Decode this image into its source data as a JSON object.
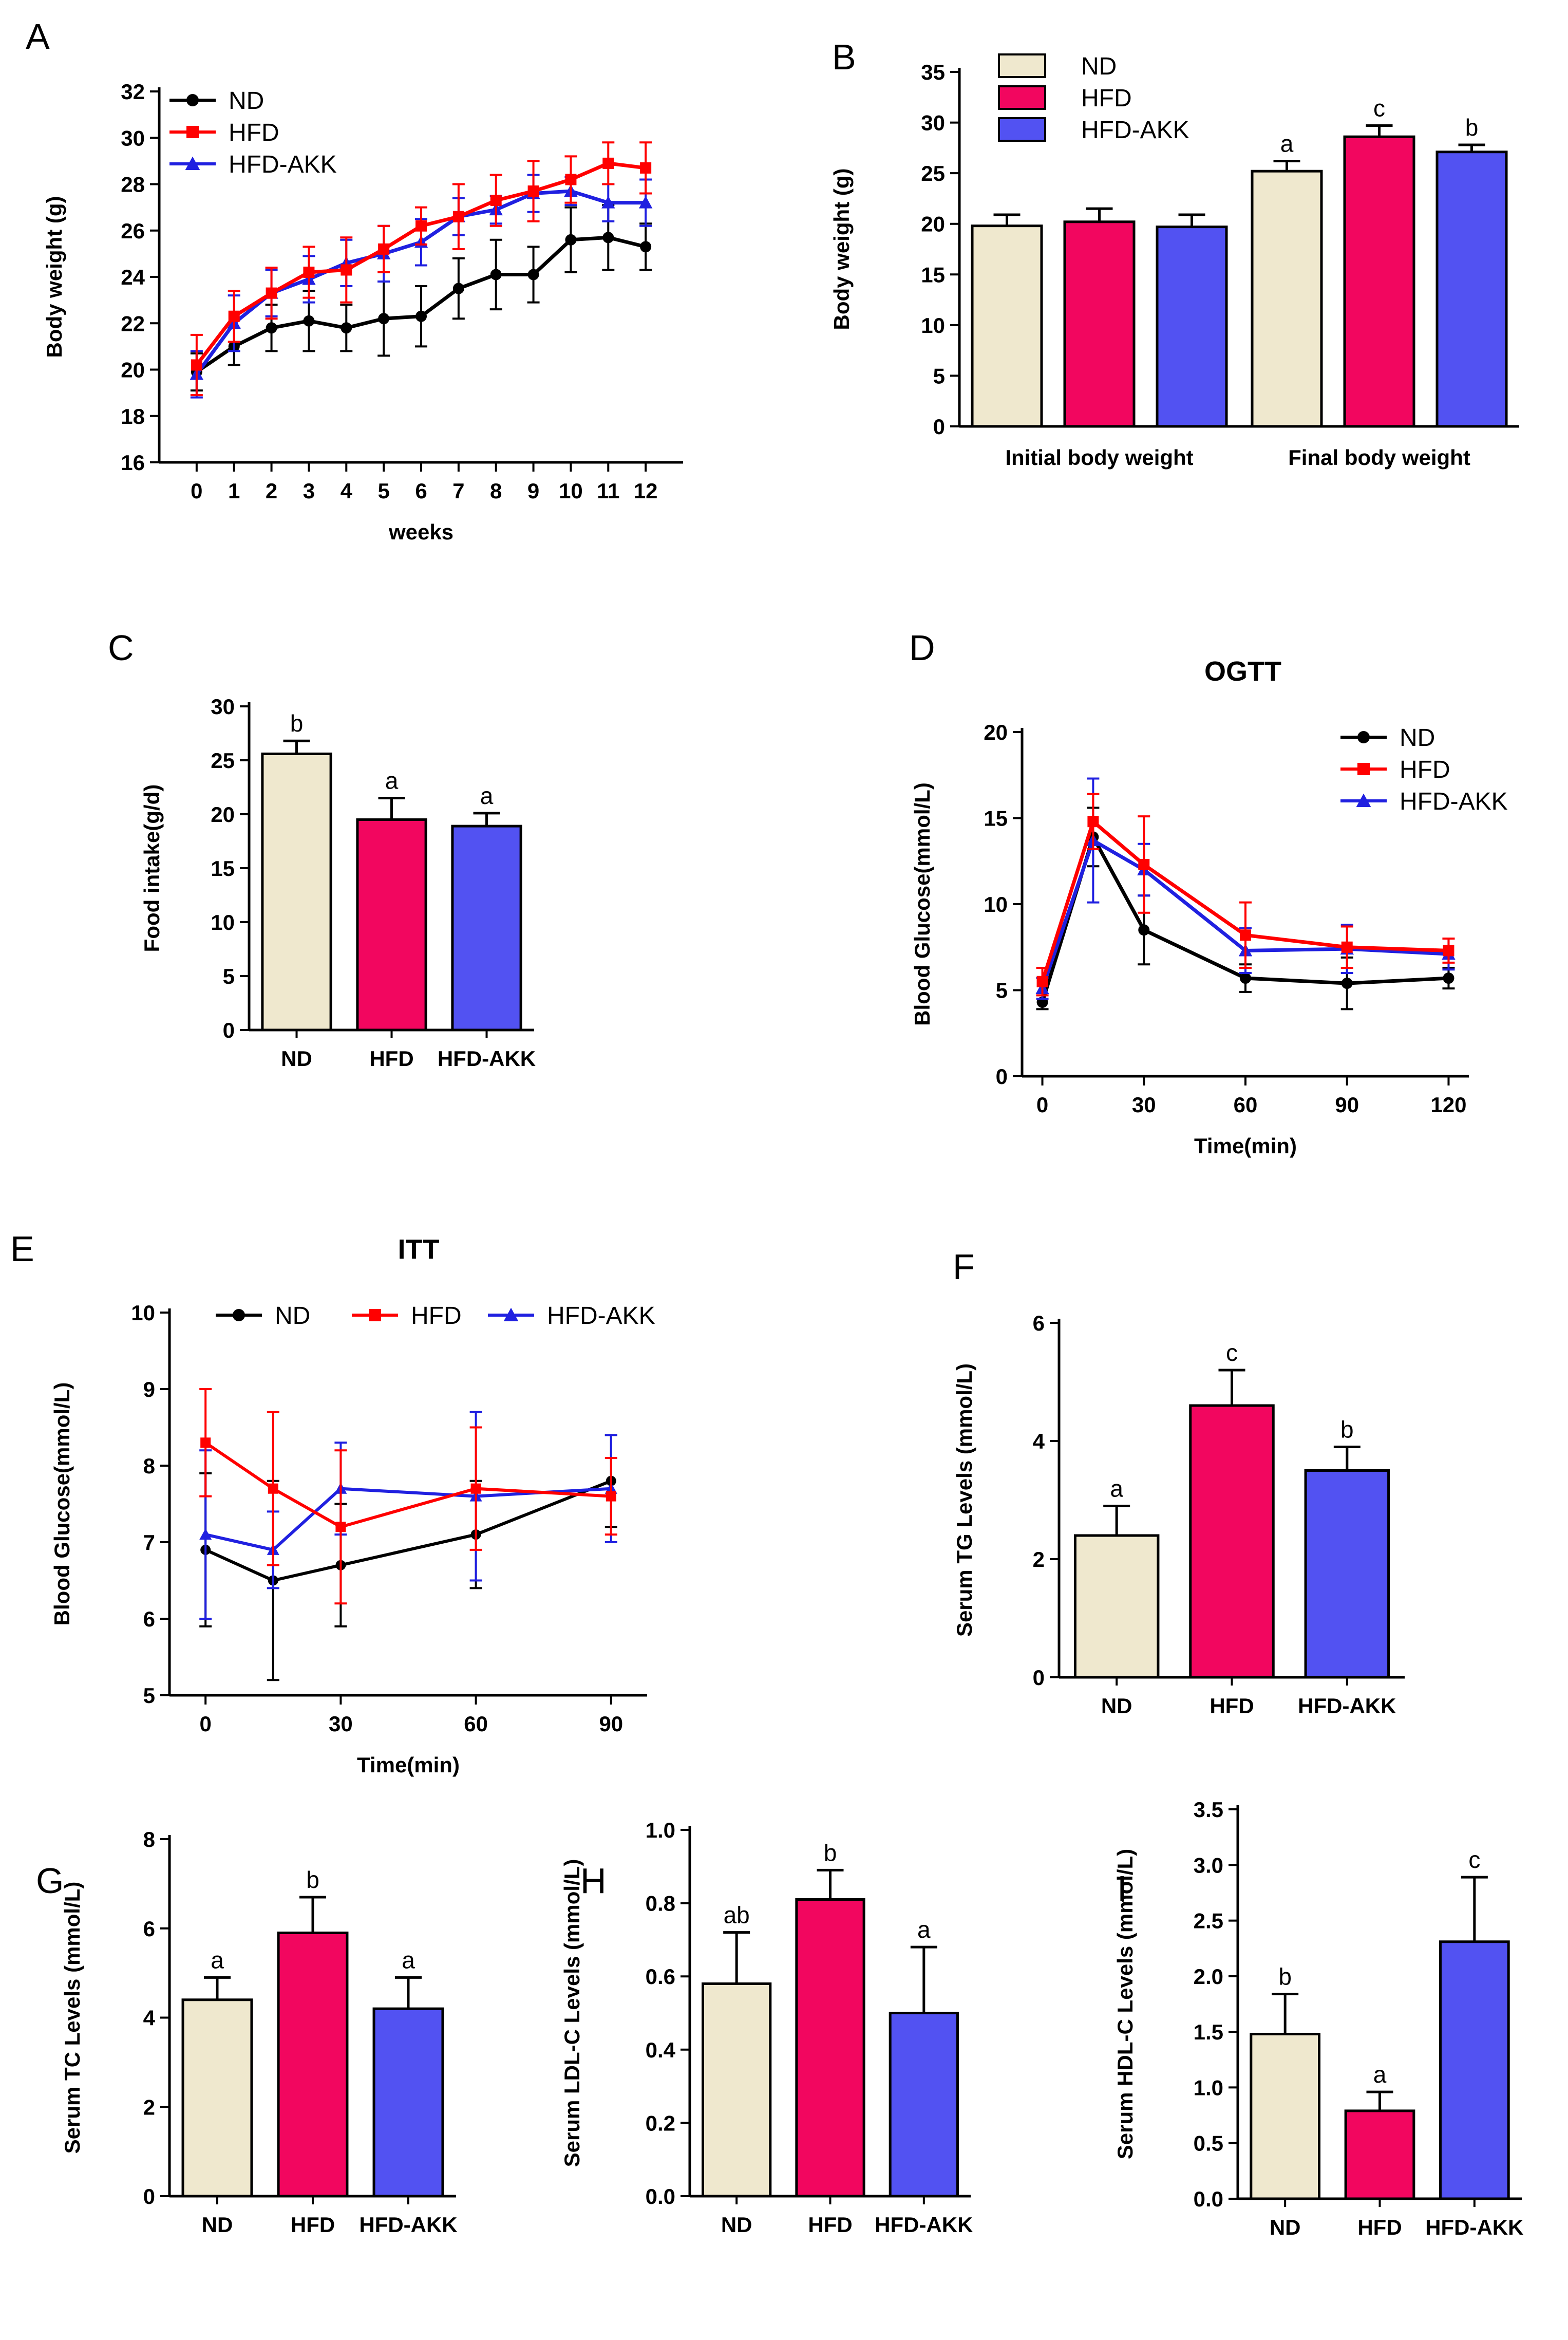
{
  "colors": {
    "ND": "#000000",
    "HFD": "#ff0000",
    "HFD-AKK": "#2020e0",
    "bar_ND": "#efe8ce",
    "bar_HFD": "#f2065f",
    "bar_HFD-AKK": "#5252f2"
  },
  "chart_data": [
    {
      "panel": "A",
      "type": "line",
      "title": "",
      "xlabel": "weeks",
      "ylabel": "Body weight (g)",
      "x": [
        0,
        1,
        2,
        3,
        4,
        5,
        6,
        7,
        8,
        9,
        10,
        11,
        12
      ],
      "xticks": [
        "0",
        "1",
        "2",
        "3",
        "4",
        "5",
        "6",
        "7",
        "8",
        "9",
        "10",
        "11",
        "12"
      ],
      "ylim": [
        16,
        32
      ],
      "yticks": [
        "16",
        "18",
        "20",
        "22",
        "24",
        "26",
        "28",
        "30",
        "32"
      ],
      "series": [
        {
          "name": "ND",
          "values": [
            19.9,
            21.0,
            21.8,
            22.1,
            21.8,
            22.2,
            22.3,
            23.5,
            24.1,
            24.1,
            25.6,
            25.7,
            25.3
          ],
          "errors": [
            0.8,
            0.8,
            1.0,
            1.3,
            1.0,
            1.6,
            1.3,
            1.3,
            1.5,
            1.2,
            1.4,
            1.4,
            1.0
          ]
        },
        {
          "name": "HFD",
          "values": [
            20.2,
            22.3,
            23.3,
            24.2,
            24.3,
            25.2,
            26.2,
            26.6,
            27.3,
            27.7,
            28.2,
            28.9,
            28.7
          ],
          "errors": [
            1.3,
            1.1,
            1.1,
            1.1,
            1.4,
            1.0,
            0.8,
            1.4,
            1.1,
            1.3,
            1.0,
            0.9,
            1.1
          ]
        },
        {
          "name": "HFD-AKK",
          "values": [
            19.8,
            22.0,
            23.3,
            23.9,
            24.6,
            25.0,
            25.5,
            26.6,
            26.9,
            27.6,
            27.7,
            27.2,
            27.2
          ],
          "errors": [
            1.0,
            1.2,
            1.0,
            1.0,
            1.0,
            1.2,
            1.0,
            0.8,
            0.6,
            0.8,
            0.6,
            0.8,
            1.0
          ]
        }
      ],
      "legend": [
        "ND",
        "HFD",
        "HFD-AKK"
      ]
    },
    {
      "panel": "B",
      "type": "bar",
      "title": "",
      "xlabel": "",
      "ylabel": "Body weight (g)",
      "categories": [
        "Initial body weight",
        "Final body weight"
      ],
      "ylim": [
        0,
        35
      ],
      "yticks": [
        "0",
        "5",
        "10",
        "15",
        "20",
        "25",
        "30",
        "35"
      ],
      "series": [
        {
          "name": "ND",
          "values": [
            19.8,
            25.2
          ],
          "errors": [
            1.1,
            1.0
          ],
          "letters": [
            "",
            "a"
          ]
        },
        {
          "name": "HFD",
          "values": [
            20.2,
            28.6
          ],
          "errors": [
            1.3,
            1.1
          ],
          "letters": [
            "",
            "c"
          ]
        },
        {
          "name": "HFD-AKK",
          "values": [
            19.7,
            27.1
          ],
          "errors": [
            1.2,
            0.7
          ],
          "letters": [
            "",
            "b"
          ]
        }
      ],
      "legend": [
        "ND",
        "HFD",
        "HFD-AKK"
      ]
    },
    {
      "panel": "C",
      "type": "bar",
      "title": "",
      "xlabel": "",
      "ylabel": "Food intake(g/d)",
      "categories": [
        "ND",
        "HFD",
        "HFD-AKK"
      ],
      "values": [
        25.6,
        19.5,
        18.9
      ],
      "errors": [
        1.2,
        2.0,
        1.2
      ],
      "letters": [
        "b",
        "a",
        "a"
      ],
      "ylim": [
        0,
        30
      ],
      "yticks": [
        "0",
        "5",
        "10",
        "15",
        "20",
        "25",
        "30"
      ]
    },
    {
      "panel": "D",
      "type": "line",
      "title": "OGTT",
      "xlabel": "Time(min)",
      "ylabel": "Blood Glucose(mmol/L)",
      "x": [
        0,
        15,
        30,
        60,
        90,
        120
      ],
      "xticks": [
        "0",
        "30",
        "60",
        "90",
        "120"
      ],
      "xlim": [
        -6,
        126
      ],
      "ylim": [
        0,
        20
      ],
      "yticks": [
        "0",
        "5",
        "10",
        "15",
        "20"
      ],
      "series": [
        {
          "name": "ND",
          "values": [
            4.3,
            13.9,
            8.5,
            5.7,
            5.4,
            5.7
          ],
          "errors": [
            0.4,
            1.7,
            2.0,
            0.8,
            1.5,
            0.6
          ]
        },
        {
          "name": "HFD",
          "values": [
            5.5,
            14.8,
            12.3,
            8.2,
            7.5,
            7.3
          ],
          "errors": [
            0.8,
            1.6,
            2.8,
            1.9,
            1.2,
            0.7
          ]
        },
        {
          "name": "HFD-AKK",
          "values": [
            5.1,
            13.7,
            12.0,
            7.3,
            7.4,
            7.1
          ],
          "errors": [
            0.6,
            3.6,
            1.5,
            1.3,
            1.4,
            0.9
          ]
        }
      ],
      "legend": [
        "ND",
        "HFD",
        "HFD-AKK"
      ]
    },
    {
      "panel": "E",
      "type": "line",
      "title": "ITT",
      "xlabel": "Time(min)",
      "ylabel": "Blood Glucose(mmol/L)",
      "x": [
        0,
        15,
        30,
        60,
        90
      ],
      "xticks": [
        "0",
        "30",
        "60",
        "90"
      ],
      "xlim": [
        -8,
        98
      ],
      "ylim": [
        5,
        10
      ],
      "yticks": [
        "5",
        "6",
        "7",
        "8",
        "9",
        "10"
      ],
      "series": [
        {
          "name": "ND",
          "values": [
            6.9,
            6.5,
            6.7,
            7.1,
            7.8
          ],
          "errors": [
            1.0,
            1.3,
            0.8,
            0.7,
            0.6
          ]
        },
        {
          "name": "HFD",
          "values": [
            8.3,
            7.7,
            7.2,
            7.7,
            7.6
          ],
          "errors": [
            0.7,
            1.0,
            1.0,
            0.8,
            0.5
          ]
        },
        {
          "name": "HFD-AKK",
          "values": [
            7.1,
            6.9,
            7.7,
            7.6,
            7.7
          ],
          "errors": [
            1.1,
            0.5,
            0.6,
            1.1,
            0.7
          ]
        }
      ],
      "legend": [
        "ND",
        "HFD",
        "HFD-AKK"
      ]
    },
    {
      "panel": "F",
      "type": "bar",
      "title": "",
      "xlabel": "",
      "ylabel": "Serum TG Levels (mmol/L)",
      "categories": [
        "ND",
        "HFD",
        "HFD-AKK"
      ],
      "values": [
        2.4,
        4.6,
        3.5
      ],
      "errors": [
        0.5,
        0.6,
        0.4
      ],
      "letters": [
        "a",
        "c",
        "b"
      ],
      "ylim": [
        0,
        6
      ],
      "yticks": [
        "0",
        "2",
        "4",
        "6"
      ]
    },
    {
      "panel": "G",
      "type": "bar",
      "title": "",
      "xlabel": "",
      "ylabel": "Serum TC Levels (mmol/L)",
      "categories": [
        "ND",
        "HFD",
        "HFD-AKK"
      ],
      "values": [
        4.4,
        5.9,
        4.2
      ],
      "errors": [
        0.5,
        0.8,
        0.7
      ],
      "letters": [
        "a",
        "b",
        "a"
      ],
      "ylim": [
        0,
        8
      ],
      "yticks": [
        "0",
        "2",
        "4",
        "6",
        "8"
      ]
    },
    {
      "panel": "H",
      "type": "bar",
      "title": "",
      "xlabel": "",
      "ylabel": "Serum LDL-C Levels (mmol/L)",
      "categories": [
        "ND",
        "HFD",
        "HFD-AKK"
      ],
      "values": [
        0.58,
        0.81,
        0.5
      ],
      "errors": [
        0.14,
        0.08,
        0.18
      ],
      "letters": [
        "ab",
        "b",
        "a"
      ],
      "ylim": [
        0,
        1.0
      ],
      "yticks": [
        "0.0",
        "0.2",
        "0.4",
        "0.6",
        "0.8",
        "1.0"
      ]
    },
    {
      "panel": "I",
      "type": "bar",
      "title": "",
      "xlabel": "",
      "ylabel": "Serum HDL-C Levels (mmol/L)",
      "categories": [
        "ND",
        "HFD",
        "HFD-AKK"
      ],
      "values": [
        1.48,
        0.79,
        2.31
      ],
      "errors": [
        0.36,
        0.17,
        0.58
      ],
      "letters": [
        "b",
        "a",
        "c"
      ],
      "ylim": [
        0,
        3.5
      ],
      "yticks": [
        "0.0",
        "0.5",
        "1.0",
        "1.5",
        "2.0",
        "2.5",
        "3.0",
        "3.5"
      ]
    }
  ]
}
